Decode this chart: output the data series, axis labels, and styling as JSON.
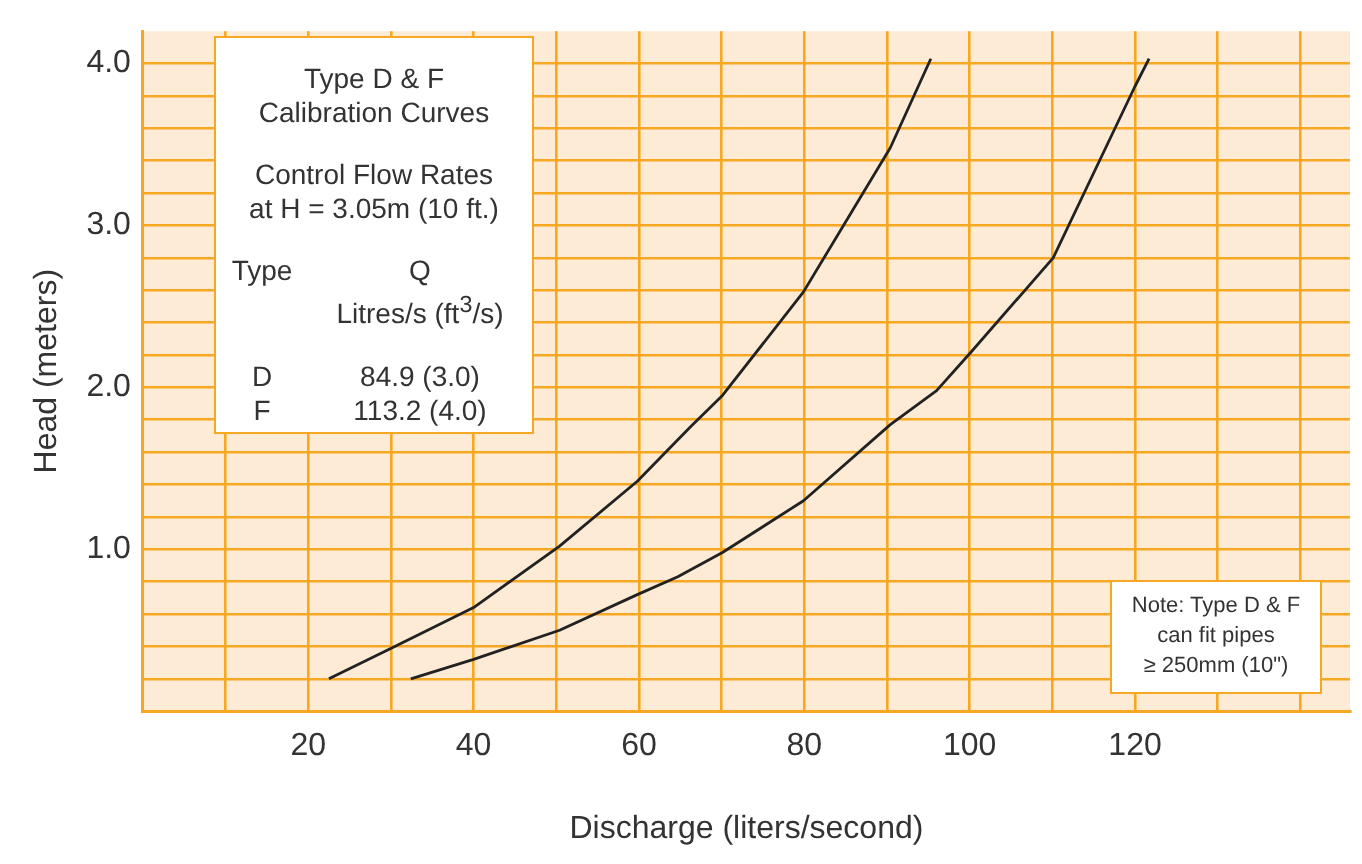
{
  "chart_data": {
    "type": "line",
    "xlabel": "Discharge (liters/second)",
    "ylabel": "Head (meters)",
    "xlim": [
      0,
      146
    ],
    "ylim": [
      0,
      4.2
    ],
    "xticks": [
      {
        "value": 10,
        "label": null
      },
      20,
      40,
      60,
      80,
      100,
      120,
      {
        "value": 30,
        "label": null
      },
      {
        "value": 50,
        "label": null
      },
      {
        "value": 70,
        "label": null
      },
      {
        "value": 90,
        "label": null
      },
      {
        "value": 110,
        "label": null
      },
      {
        "value": 130,
        "label": null
      },
      {
        "value": 140,
        "label": null
      }
    ],
    "yticks": [
      {
        "value": 0.2,
        "label": null
      },
      {
        "value": 0.4,
        "label": null
      },
      {
        "value": 0.6,
        "label": null
      },
      {
        "value": 0.8,
        "label": null
      },
      {
        "value": 1,
        "label": "1.0"
      },
      {
        "value": 1.2,
        "label": null
      },
      {
        "value": 1.4,
        "label": null
      },
      {
        "value": 1.6,
        "label": null
      },
      {
        "value": 1.8,
        "label": null
      },
      {
        "value": 2,
        "label": "2.0"
      },
      {
        "value": 2.2,
        "label": null
      },
      {
        "value": 2.4,
        "label": null
      },
      {
        "value": 2.6,
        "label": null
      },
      {
        "value": 2.8,
        "label": null
      },
      {
        "value": 3,
        "label": "3.0"
      },
      {
        "value": 3.2,
        "label": null
      },
      {
        "value": 3.4,
        "label": null
      },
      {
        "value": 3.6,
        "label": null
      },
      {
        "value": 3.8,
        "label": null
      },
      {
        "value": 4,
        "label": "4.0"
      }
    ],
    "grid": true,
    "legend": false,
    "marker": "none",
    "line_style": "solid",
    "series": [
      {
        "color": "#222222",
        "x": [
          22.5,
          30.1,
          40,
          50.4,
          59.8,
          66.3,
          70.1,
          79.9,
          90.4,
          95.3
        ],
        "values": [
          0.2,
          0.39,
          0.64,
          1.02,
          1.42,
          1.76,
          1.95,
          2.59,
          3.48,
          4.03
        ]
      },
      {
        "color": "#222222",
        "x": [
          32.4,
          40,
          50.4,
          59.8,
          64.7,
          70.1,
          79.9,
          90.4,
          96,
          100.2,
          110.1,
          120,
          121.7
        ],
        "values": [
          0.2,
          0.32,
          0.5,
          0.72,
          0.83,
          0.98,
          1.3,
          1.77,
          1.98,
          2.22,
          2.8,
          3.86,
          4.03
        ]
      }
    ],
    "annotations": [
      "Type D & F",
      "Calibration Curves",
      "Control Flow Rates",
      "at H = 3.05m (10 ft.)",
      "Type",
      "Q",
      "Litres/s (ft$^{3}$/s)",
      "D",
      "84.9 (3.0)",
      "F",
      "113.2 (4.0)",
      "Note: Type D & F",
      "can fit pipes",
      "≥ 250mm (10\")"
    ]
  }
}
